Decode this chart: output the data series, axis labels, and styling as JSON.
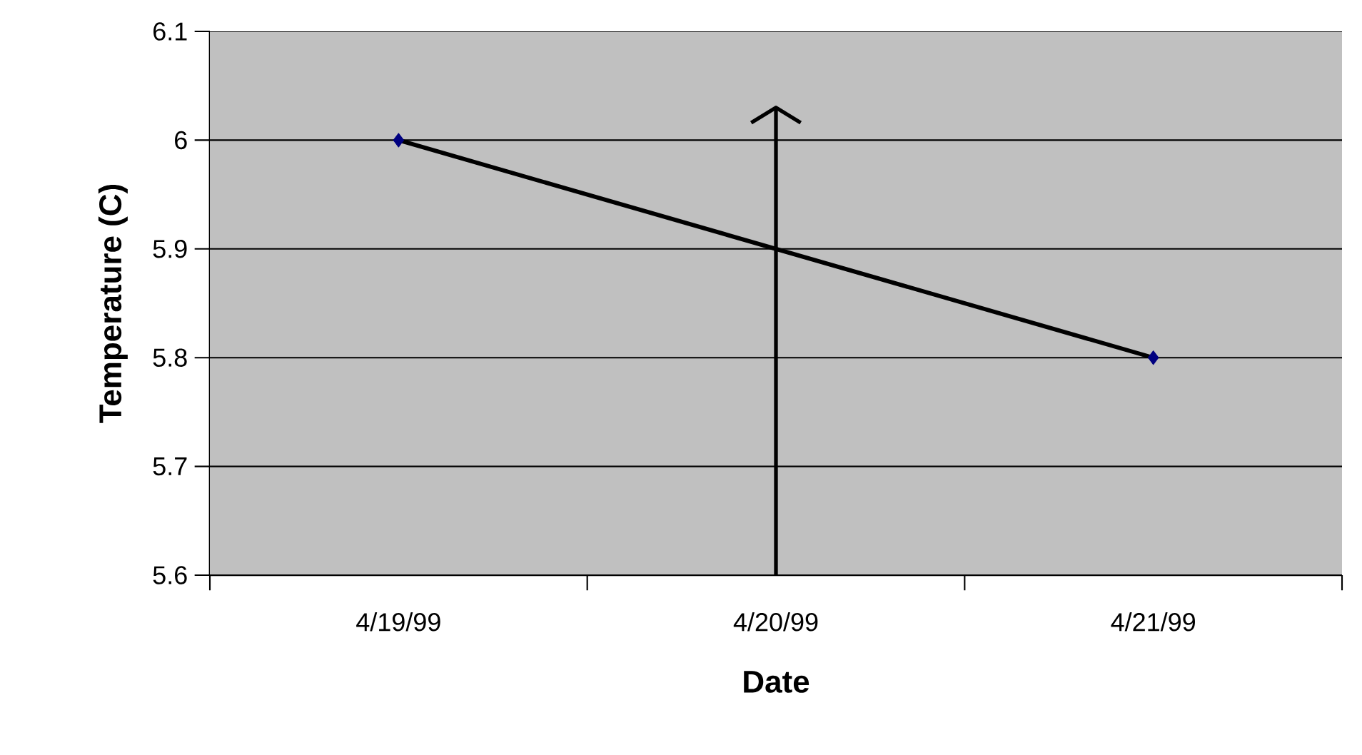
{
  "chart_data": {
    "type": "line",
    "xlabel": "Date",
    "ylabel": "Temperature (C)",
    "categories": [
      "4/19/99",
      "4/20/99",
      "4/21/99"
    ],
    "series": [
      {
        "color": "#000080",
        "values": [
          6.0,
          null,
          5.8
        ]
      }
    ],
    "ylim": [
      5.6,
      6.1
    ],
    "yticks": [
      5.6,
      5.7,
      5.8,
      5.9,
      6,
      6.1
    ],
    "grid": "y",
    "marker": "diamond",
    "ref_lines": [
      {
        "axis": "x",
        "value": "4/20/99"
      }
    ]
  }
}
